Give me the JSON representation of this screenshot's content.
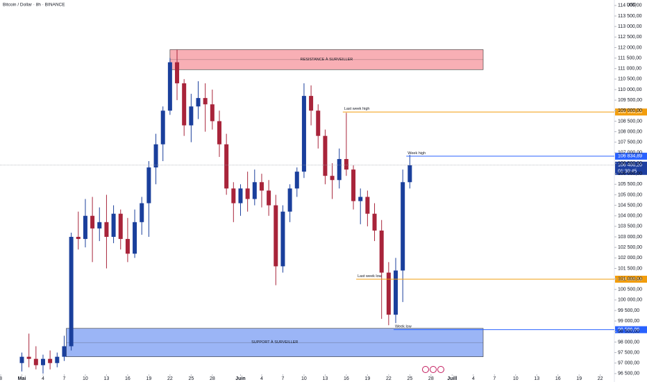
{
  "chart_data": {
    "type": "candlestick",
    "title": "Bitcoin / Dollar · 8h · BINANCE",
    "y_axis_label": "USD",
    "up_color": "#1a3f9c",
    "down_color": "#a8243a",
    "xlim": [
      -3.1,
      84
    ],
    "ylim": [
      96100,
      114260
    ],
    "xticks": [
      {
        "value": -3,
        "label": "8"
      },
      {
        "value": 0,
        "label": "Mai"
      },
      {
        "value": 3,
        "label": "4"
      },
      {
        "value": 6,
        "label": "7"
      },
      {
        "value": 9,
        "label": "10"
      },
      {
        "value": 12,
        "label": "13"
      },
      {
        "value": 15,
        "label": "16"
      },
      {
        "value": 18,
        "label": "19"
      },
      {
        "value": 21,
        "label": "22"
      },
      {
        "value": 24,
        "label": "25"
      },
      {
        "value": 27,
        "label": "28"
      },
      {
        "value": 31,
        "label": "Juin"
      },
      {
        "value": 34,
        "label": "4"
      },
      {
        "value": 37,
        "label": "7"
      },
      {
        "value": 40,
        "label": "10"
      },
      {
        "value": 43,
        "label": "13"
      },
      {
        "value": 46,
        "label": "16"
      },
      {
        "value": 49,
        "label": "19"
      },
      {
        "value": 52,
        "label": "22"
      },
      {
        "value": 55,
        "label": "25"
      },
      {
        "value": 58,
        "label": "28"
      },
      {
        "value": 61,
        "label": "Juill"
      },
      {
        "value": 64,
        "label": "4"
      },
      {
        "value": 67,
        "label": "7"
      },
      {
        "value": 70,
        "label": "10"
      },
      {
        "value": 73,
        "label": "13"
      },
      {
        "value": 76,
        "label": "16"
      },
      {
        "value": 79,
        "label": "19"
      },
      {
        "value": 82,
        "label": "22"
      }
    ],
    "yticks": [
      {
        "value": 96500,
        "label": "96 500,00"
      },
      {
        "value": 97000,
        "label": "97 000,00"
      },
      {
        "value": 97500,
        "label": "97 500,00"
      },
      {
        "value": 98000,
        "label": "98 000,00"
      },
      {
        "value": 98500,
        "label": "98 500,00"
      },
      {
        "value": 99000,
        "label": "99 000,00"
      },
      {
        "value": 99500,
        "label": "99 500,00"
      },
      {
        "value": 100000,
        "label": "100 000,00"
      },
      {
        "value": 100500,
        "label": "100 500,00"
      },
      {
        "value": 101000,
        "label": "101 000,00"
      },
      {
        "value": 101500,
        "label": "101 500,00"
      },
      {
        "value": 102000,
        "label": "102 000,00"
      },
      {
        "value": 102500,
        "label": "102 500,00"
      },
      {
        "value": 103000,
        "label": "103 000,00"
      },
      {
        "value": 103500,
        "label": "103 500,00"
      },
      {
        "value": 104000,
        "label": "104 000,00"
      },
      {
        "value": 104500,
        "label": "104 500,00"
      },
      {
        "value": 105000,
        "label": "105 000,00"
      },
      {
        "value": 105500,
        "label": "105 500,00"
      },
      {
        "value": 106000,
        "label": "106 000,00"
      },
      {
        "value": 106500,
        "label": "106 500,00"
      },
      {
        "value": 107000,
        "label": "107 000,00"
      },
      {
        "value": 107500,
        "label": "107 500,00"
      },
      {
        "value": 108000,
        "label": "108 000,00"
      },
      {
        "value": 108500,
        "label": "108 500,00"
      },
      {
        "value": 109000,
        "label": "109 000,00"
      },
      {
        "value": 109500,
        "label": "109 500,00"
      },
      {
        "value": 110000,
        "label": "110 000,00"
      },
      {
        "value": 110500,
        "label": "110 500,00"
      },
      {
        "value": 111000,
        "label": "111 000,00"
      },
      {
        "value": 111500,
        "label": "111 500,00"
      },
      {
        "value": 112000,
        "label": "112 000,00"
      },
      {
        "value": 112500,
        "label": "112 500,00"
      },
      {
        "value": 113000,
        "label": "113 000,00"
      },
      {
        "value": 113500,
        "label": "113 500,00"
      },
      {
        "value": 114000,
        "label": "114 000,00"
      }
    ],
    "candles": {
      "x": [
        0,
        1,
        2,
        3,
        4,
        5,
        6,
        7,
        8,
        9,
        10,
        11,
        12,
        13,
        14,
        15,
        16,
        17,
        18,
        19,
        20,
        21,
        22,
        23,
        24,
        25,
        26,
        27,
        28,
        29,
        30,
        31,
        32,
        33,
        34,
        35,
        36,
        37,
        38,
        39,
        40,
        41,
        42,
        43,
        44,
        45,
        46,
        47,
        48,
        49,
        50,
        51,
        52,
        53,
        54,
        55
      ],
      "open": [
        97000,
        97300,
        97200,
        96900,
        97200,
        97000,
        97300,
        97800,
        103000,
        102900,
        104000,
        103400,
        103700,
        103000,
        104100,
        102900,
        102200,
        103700,
        104600,
        106300,
        107400,
        109000,
        111300,
        110300,
        108300,
        109200,
        109600,
        109300,
        108500,
        107400,
        105300,
        104600,
        105300,
        104800,
        105600,
        105200,
        104500,
        101600,
        104200,
        105300,
        106100,
        109700,
        109000,
        107800,
        105900,
        105700,
        106700,
        106200,
        104700,
        104900,
        104100,
        103300,
        101300,
        99300,
        101400,
        105600
      ],
      "high": [
        97500,
        98400,
        97800,
        97400,
        97600,
        97500,
        98300,
        103200,
        104200,
        104800,
        104900,
        104400,
        105000,
        104500,
        104300,
        103900,
        104300,
        104900,
        106600,
        107900,
        109200,
        111500,
        111900,
        110500,
        109800,
        110400,
        110300,
        110000,
        109000,
        107900,
        105600,
        105500,
        106100,
        106200,
        106000,
        105700,
        105000,
        104500,
        105500,
        106300,
        110300,
        110200,
        109300,
        108100,
        106500,
        107200,
        108900,
        106400,
        105300,
        105200,
        104600,
        103800,
        101800,
        102000,
        106200,
        106900
      ],
      "low": [
        96600,
        96800,
        96700,
        96500,
        96700,
        96800,
        97100,
        97600,
        102400,
        102500,
        101800,
        102800,
        101500,
        102700,
        102400,
        101800,
        102000,
        103100,
        103000,
        105500,
        106600,
        108800,
        109500,
        107800,
        107500,
        108600,
        108000,
        108100,
        106800,
        105000,
        103700,
        104000,
        104200,
        104500,
        104400,
        104000,
        100700,
        101300,
        103700,
        104900,
        105800,
        108300,
        107200,
        105500,
        104800,
        105300,
        105900,
        104300,
        103600,
        103500,
        102800,
        99100,
        98800,
        98900,
        99900,
        105300
      ],
      "close": [
        97300,
        97200,
        96900,
        97200,
        97000,
        97300,
        97800,
        103000,
        102900,
        104000,
        103400,
        103700,
        103000,
        104100,
        102900,
        102200,
        103700,
        104600,
        106300,
        107400,
        109000,
        111300,
        110300,
        108300,
        109200,
        109600,
        109300,
        108500,
        107400,
        105300,
        104600,
        105300,
        104800,
        105600,
        105200,
        104500,
        101600,
        104200,
        105300,
        106100,
        109700,
        109000,
        107800,
        105900,
        105700,
        106700,
        106200,
        104700,
        104900,
        104100,
        103300,
        101300,
        99300,
        101400,
        105600,
        106408.2
      ]
    },
    "zones": [
      {
        "label": "RESISTANCE À SURVEILLER",
        "low": 110950,
        "high": 111900,
        "color": "#f7a1a8"
      },
      {
        "label": "SUPPORT À SURVEILLER",
        "low": 97300,
        "high": 98650,
        "color": "#8aa8f5"
      }
    ],
    "levels": [
      {
        "name": "Last week high",
        "value": 108935.33,
        "label": "108 935,33",
        "color": "#f29d0c"
      },
      {
        "name": "Week high",
        "value": 106834.89,
        "label": "106 834,89",
        "color": "#2962ff"
      },
      {
        "name": "Last week low",
        "value": 100986.53,
        "label": "100 986,53",
        "color": "#f29d0c"
      },
      {
        "name": "Week low",
        "value": 98586.86,
        "label": "98 586,86",
        "color": "#2962ff"
      }
    ],
    "last_price": {
      "value": 106408.2,
      "label": "106 408,20",
      "countdown": "01:30:45",
      "color": "#1e3fa0"
    }
  }
}
